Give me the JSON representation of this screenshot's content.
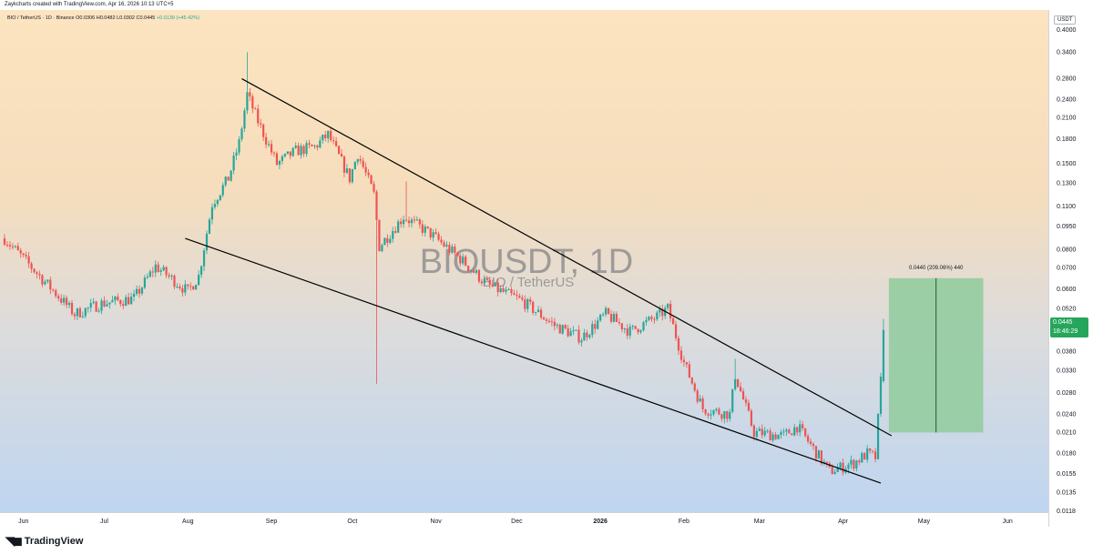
{
  "header": {
    "credit": "Zaykcharts created with TradingView.com, Apr 16, 2026 10:13 UTC+5"
  },
  "symbol": {
    "name": "BIO / TetherUS · 1D · Binance",
    "open": "O0.0306",
    "high": "H0.0482",
    "low": "L0.0302",
    "close": "C0.0445",
    "change": "+0.0139 (+45.42%)"
  },
  "watermark": {
    "title": "BIOUSDT, 1D",
    "subtitle": "BIO / TetherUS"
  },
  "price_axis": {
    "currency": "USDT",
    "ticks": [
      "0.4000",
      "0.3400",
      "0.2800",
      "0.2400",
      "0.2100",
      "0.1800",
      "0.1500",
      "0.1300",
      "0.1100",
      "0.0950",
      "0.0800",
      "0.0700",
      "0.0600",
      "0.0520",
      "0.0450",
      "0.0380",
      "0.0330",
      "0.0280",
      "0.0240",
      "0.0210",
      "0.0180",
      "0.0155",
      "0.0135",
      "0.0118"
    ],
    "current_price": "0.0445",
    "countdown": "18:46:29"
  },
  "time_axis": {
    "labels": [
      "Jun",
      "Jul",
      "Aug",
      "Sep",
      "Oct",
      "Nov",
      "Dec",
      "2026",
      "Feb",
      "Mar",
      "Apr",
      "May",
      "Jun"
    ]
  },
  "projection": {
    "label": "0.0440 (209.06%) 440",
    "from_price": 0.021,
    "to_price": 0.065
  },
  "colors": {
    "up": "#26a69a",
    "down": "#ef5350",
    "projection_fill": "#8fcb9c",
    "current": "#26a65b"
  },
  "footer": {
    "brand": "TradingView"
  },
  "chart_data": {
    "type": "candlestick",
    "scale": "log",
    "start_date": "2025-05-25",
    "end_date": "2026-04-16",
    "x_labels": [
      "Jun",
      "Jul",
      "Aug",
      "Sep",
      "Oct",
      "Nov",
      "Dec",
      "2026",
      "Feb",
      "Mar",
      "Apr",
      "May",
      "Jun"
    ],
    "price_keypoints": [
      [
        "2025-05-25",
        0.087
      ],
      [
        "2025-06-10",
        0.062
      ],
      [
        "2025-06-20",
        0.05
      ],
      [
        "2025-06-30",
        0.054
      ],
      [
        "2025-07-12",
        0.056
      ],
      [
        "2025-07-20",
        0.071
      ],
      [
        "2025-08-01",
        0.059
      ],
      [
        "2025-08-05",
        0.066
      ],
      [
        "2025-08-10",
        0.112
      ],
      [
        "2025-08-16",
        0.135
      ],
      [
        "2025-08-20",
        0.175
      ],
      [
        "2025-08-23",
        0.25
      ],
      [
        "2025-08-27",
        0.205
      ],
      [
        "2025-09-03",
        0.15
      ],
      [
        "2025-09-10",
        0.165
      ],
      [
        "2025-09-17",
        0.17
      ],
      [
        "2025-09-22",
        0.186
      ],
      [
        "2025-09-30",
        0.135
      ],
      [
        "2025-10-03",
        0.162
      ],
      [
        "2025-10-09",
        0.12
      ],
      [
        "2025-10-11",
        0.082
      ],
      [
        "2025-10-20",
        0.102
      ],
      [
        "2025-10-30",
        0.09
      ],
      [
        "2025-11-10",
        0.075
      ],
      [
        "2025-11-20",
        0.062
      ],
      [
        "2025-12-03",
        0.055
      ],
      [
        "2025-12-15",
        0.046
      ],
      [
        "2025-12-25",
        0.042
      ],
      [
        "2026-01-03",
        0.05
      ],
      [
        "2026-01-12",
        0.044
      ],
      [
        "2026-01-22",
        0.049
      ],
      [
        "2026-01-26",
        0.052
      ],
      [
        "2026-02-01",
        0.035
      ],
      [
        "2026-02-08",
        0.025
      ],
      [
        "2026-02-18",
        0.024
      ],
      [
        "2026-02-20",
        0.032
      ],
      [
        "2026-02-27",
        0.021
      ],
      [
        "2026-03-10",
        0.0205
      ],
      [
        "2026-03-15",
        0.022
      ],
      [
        "2026-03-27",
        0.0158
      ],
      [
        "2026-04-05",
        0.0168
      ],
      [
        "2026-04-10",
        0.018
      ],
      [
        "2026-04-13",
        0.0175
      ],
      [
        "2026-04-15",
        0.0306
      ],
      [
        "2026-04-16",
        0.0445
      ]
    ],
    "spikes": [
      {
        "date": "2025-08-23",
        "high": 0.34
      },
      {
        "date": "2025-10-10",
        "low": 0.03
      },
      {
        "date": "2025-10-21",
        "high": 0.132
      },
      {
        "date": "2026-02-20",
        "high": 0.036
      },
      {
        "date": "2026-04-16",
        "high": 0.0482
      }
    ],
    "trendlines": [
      {
        "name": "upper-trendline",
        "from": [
          "2025-08-21",
          0.28
        ],
        "to": [
          "2026-04-19",
          0.0205
        ]
      },
      {
        "name": "lower-trendline",
        "from": [
          "2025-07-31",
          0.087
        ],
        "to": [
          "2026-04-15",
          0.0145
        ]
      }
    ],
    "projection_box": {
      "from_date": "2026-04-18",
      "to_date": "2026-05-23",
      "low": 0.021,
      "high": 0.065
    },
    "last": {
      "open": 0.0306,
      "high": 0.0482,
      "low": 0.0302,
      "close": 0.0445
    }
  }
}
